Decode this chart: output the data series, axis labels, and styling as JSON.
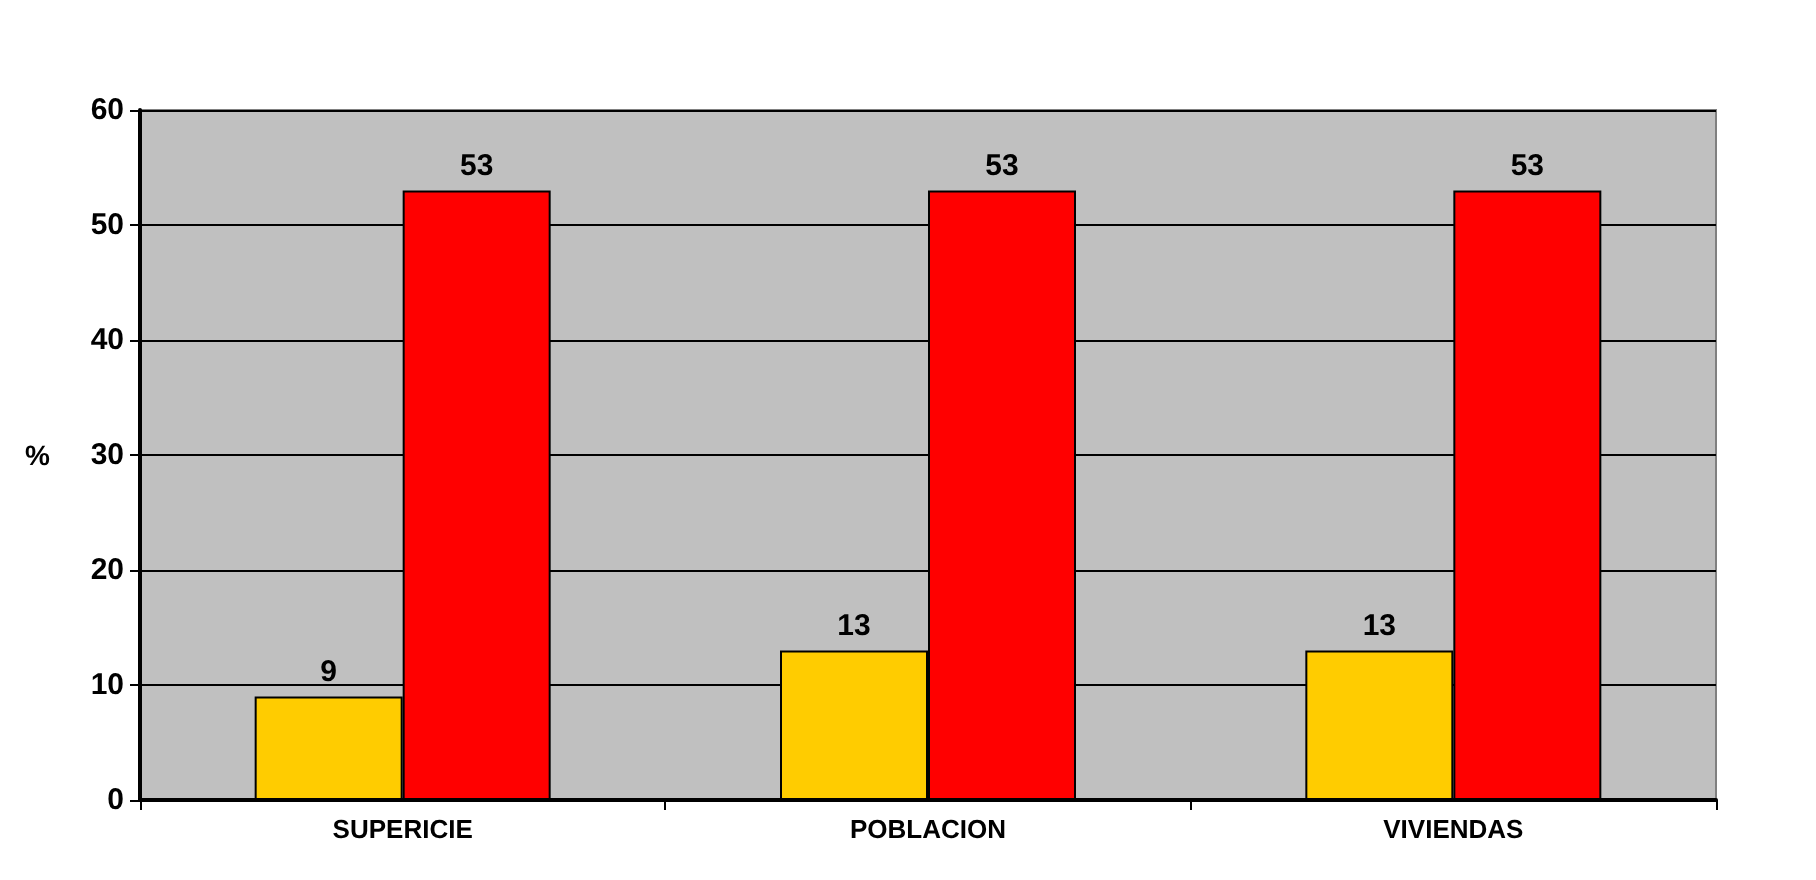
{
  "chart_data": {
    "type": "bar",
    "ylabel": "%",
    "categories": [
      "SUPERICIE",
      "POBLACION",
      "VIVIENDAS"
    ],
    "series": [
      {
        "color": "#ffcc00",
        "values": [
          9,
          13,
          13
        ]
      },
      {
        "color": "#ff0000",
        "values": [
          53,
          53,
          53
        ]
      }
    ],
    "ylim": [
      0,
      60
    ],
    "yticks": [
      0,
      10,
      20,
      30,
      40,
      50,
      60
    ],
    "grid": "y",
    "data_labels": true
  }
}
